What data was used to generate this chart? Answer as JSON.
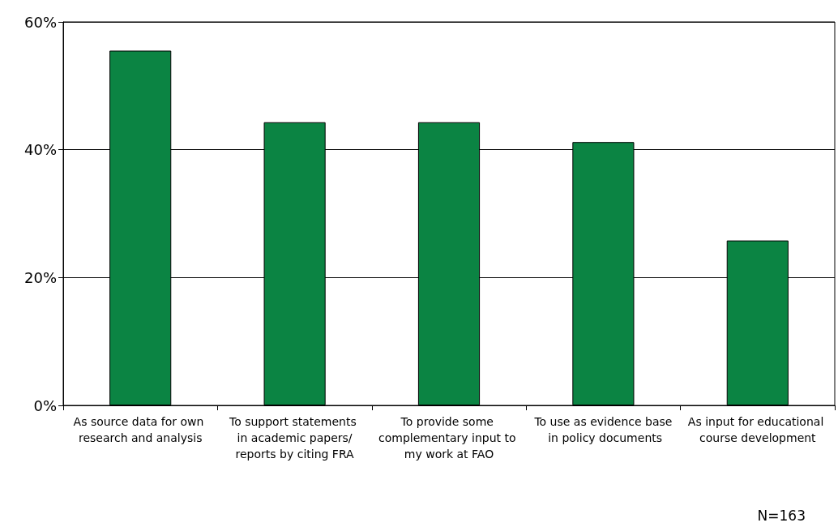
{
  "chart_data": {
    "type": "bar",
    "categories": [
      "As source data for own research and analysis",
      "To support statements in academic papers/reports by citing FRA",
      "To provide some complementary input to my work at FAO",
      "To use as evidence base in policy documents",
      "As input for educational course development"
    ],
    "values": [
      55.5,
      44.3,
      44.3,
      41.2,
      25.8
    ],
    "color": "#0b8443",
    "ylim": [
      0,
      60
    ],
    "yticks": [
      {
        "value": 0,
        "label": "0%"
      },
      {
        "value": 20,
        "label": "20%"
      },
      {
        "value": 40,
        "label": "40%"
      },
      {
        "value": 60,
        "label": "60%"
      }
    ],
    "grid": "y",
    "annotations": [
      "N=163"
    ]
  }
}
